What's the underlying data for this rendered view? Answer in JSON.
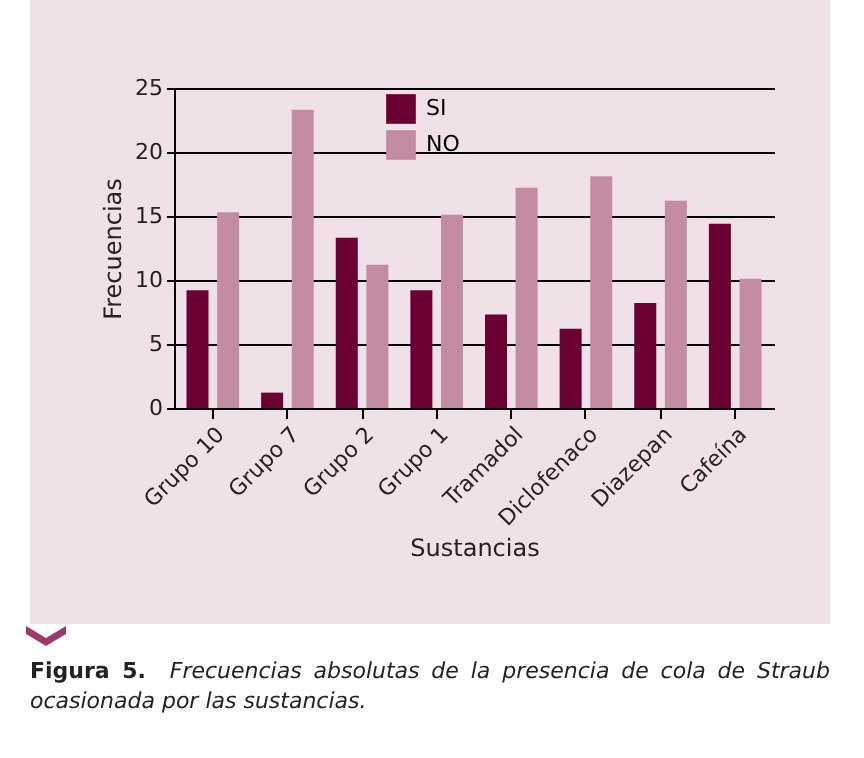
{
  "chart_data": {
    "type": "bar",
    "xlabel": "Sustancias",
    "ylabel": "Frecuencias",
    "categories": [
      "Grupo 10",
      "Grupo 7",
      "Grupo 2",
      "Grupo 1",
      "Tramadol",
      "Diclofenaco",
      "Diazepan",
      "Cafeína"
    ],
    "series": [
      {
        "name": "SI",
        "color": "#6b0033",
        "values": [
          9.2,
          1.2,
          13.3,
          9.2,
          7.3,
          6.2,
          8.2,
          14.4
        ]
      },
      {
        "name": "NO",
        "color": "#c48ca3",
        "values": [
          15.3,
          23.3,
          11.2,
          15.1,
          17.2,
          18.1,
          16.2,
          10.1
        ]
      }
    ],
    "ylim": [
      0,
      25
    ],
    "yticks": [
      0,
      5,
      10,
      15,
      20,
      25
    ],
    "grid": "y",
    "legend": "top",
    "annotations": [
      "Figura 5.",
      "Frecuencias absolutas de la presencia de cola de Straub ocasionada por las sustancias."
    ]
  }
}
